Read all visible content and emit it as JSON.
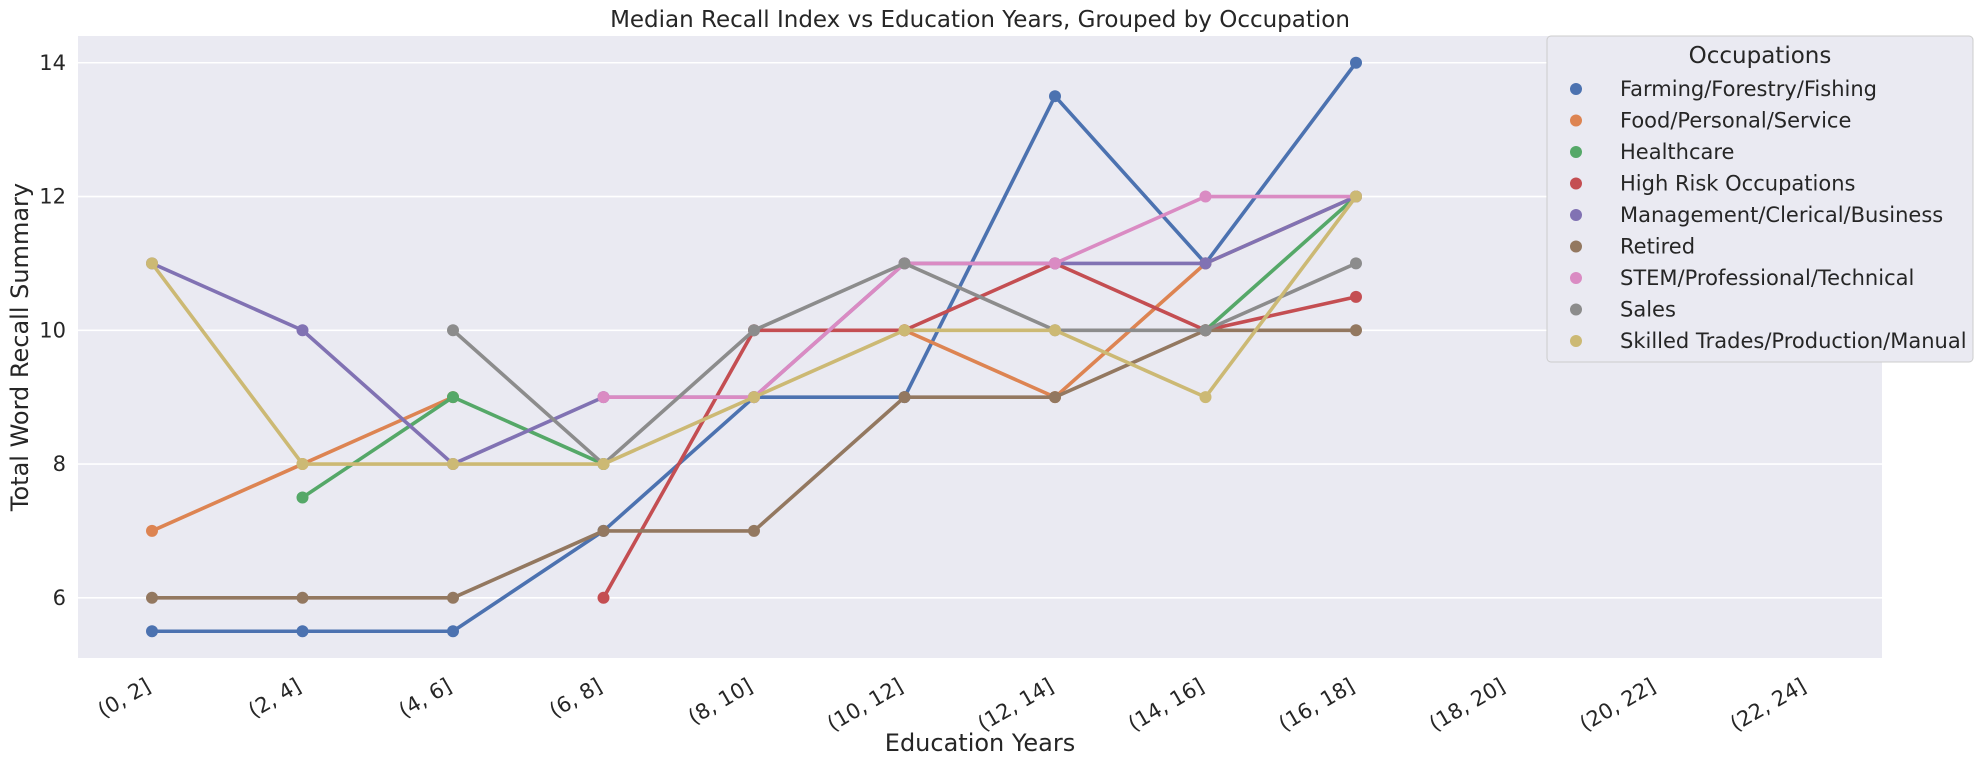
{
  "chart_data": {
    "type": "line",
    "title": "Median Recall Index vs Education Years, Grouped by Occupation",
    "xlabel": "Education Years",
    "ylabel": "Total Word Recall Summary",
    "categories": [
      "(0, 2]",
      "(2, 4]",
      "(4, 6]",
      "(6, 8]",
      "(8, 10]",
      "(10, 12]",
      "(12, 14]",
      "(14, 16]",
      "(16, 18]",
      "(18, 20]",
      "(20, 22]",
      "(22, 24]"
    ],
    "ylim": [
      5.1,
      14.4
    ],
    "yticks": [
      6,
      8,
      10,
      12,
      14
    ],
    "grid": true,
    "legend": {
      "title": "Occupations",
      "position": "top-right"
    },
    "series": [
      {
        "name": "Farming/Forestry/Fishing",
        "color": "#4c72b0",
        "values": [
          5.5,
          5.5,
          5.5,
          7,
          9,
          9,
          13.5,
          11,
          14,
          null,
          null,
          null
        ]
      },
      {
        "name": "Food/Personal/Service",
        "color": "#dd8452",
        "values": [
          7,
          8,
          9,
          null,
          null,
          10,
          9,
          11,
          12,
          null,
          null,
          null
        ]
      },
      {
        "name": "Healthcare",
        "color": "#55a868",
        "values": [
          null,
          7.5,
          9,
          8,
          null,
          null,
          null,
          10,
          12,
          null,
          null,
          null
        ]
      },
      {
        "name": "High Risk Occupations",
        "color": "#c44e52",
        "values": [
          null,
          null,
          null,
          6,
          10,
          10,
          11,
          10,
          10.5,
          null,
          null,
          null
        ]
      },
      {
        "name": "Management/Clerical/Business",
        "color": "#8172b3",
        "values": [
          11,
          10,
          8,
          9,
          9,
          11,
          11,
          11,
          12,
          null,
          null,
          null
        ]
      },
      {
        "name": "Retired",
        "color": "#937860",
        "values": [
          6,
          6,
          6,
          7,
          7,
          9,
          9,
          10,
          10,
          null,
          null,
          null
        ]
      },
      {
        "name": "STEM/Professional/Technical",
        "color": "#da8bc3",
        "values": [
          null,
          null,
          null,
          9,
          9,
          11,
          11,
          12,
          12,
          null,
          null,
          null
        ]
      },
      {
        "name": "Sales",
        "color": "#8c8c8c",
        "values": [
          null,
          null,
          10,
          8,
          10,
          11,
          10,
          10,
          11,
          null,
          null,
          null
        ]
      },
      {
        "name": "Skilled Trades/Production/Manual",
        "color": "#ccb974",
        "values": [
          11,
          8,
          8,
          8,
          9,
          10,
          10,
          9,
          12,
          null,
          null,
          null
        ]
      }
    ]
  }
}
